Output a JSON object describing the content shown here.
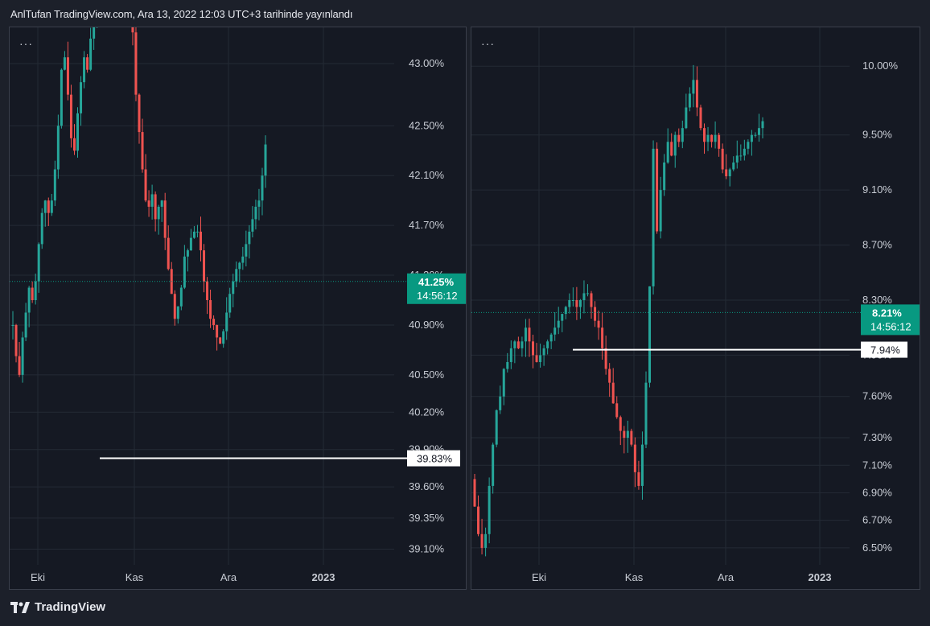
{
  "header": {
    "title": "AnlTufan TradingView.com, Ara 13, 2022 12:03 UTC+3 tarihinde yayınlandı"
  },
  "footer": {
    "brand": "TradingView"
  },
  "menu_dots": "···",
  "colors": {
    "up": "#26a69a",
    "down": "#ef5350",
    "grid": "#242a35",
    "text": "#c8ccd4",
    "badge": "#089981"
  },
  "chart_data": [
    {
      "type": "candlestick",
      "x_ticks": [
        "Eki",
        "Kas",
        "Ara",
        "2023"
      ],
      "y_ticks": [
        "43.00%",
        "42.50%",
        "42.10%",
        "41.70%",
        "41.30%",
        "40.90%",
        "40.50%",
        "40.20%",
        "39.90%",
        "39.60%",
        "39.35%",
        "39.10%"
      ],
      "ylim": [
        39.0,
        43.2
      ],
      "last_price": "41.25%",
      "countdown": "14:56:12",
      "horizontal_line": {
        "value": 39.83,
        "label": "39.83%"
      },
      "start": 40.9,
      "walk": [
        0.0,
        -0.25,
        -0.15,
        0.3,
        0.2,
        0.2,
        -0.1,
        0.15,
        0.3,
        0.25,
        0.1,
        -0.1,
        0.1,
        0.25,
        0.35,
        0.45,
        0.1,
        -0.3,
        -0.35,
        -0.1,
        0.3,
        0.25,
        0.2,
        -0.1,
        0.25,
        0.2,
        0.1,
        0.2,
        -0.1,
        0.15,
        0.15,
        0.05,
        0.1,
        -0.05,
        -0.1,
        -0.15,
        -0.2,
        -0.3,
        -0.5,
        -0.3,
        -0.3,
        -0.25,
        -0.05,
        0.1,
        -0.2,
        0.1,
        0.05,
        -0.3,
        -0.25,
        -0.2,
        -0.2,
        0.1,
        0.15,
        0.25,
        0.05,
        0.1,
        0.05,
        0.0,
        -0.15,
        -0.25,
        -0.15,
        -0.15,
        -0.05,
        -0.1,
        -0.05,
        0.1,
        0.15,
        0.15,
        0.1,
        0.1,
        0.05,
        0.05,
        0.1,
        0.1,
        0.1,
        0.1,
        0.05,
        0.2,
        0.25
      ]
    },
    {
      "type": "candlestick",
      "x_ticks": [
        "Eki",
        "Kas",
        "Ara",
        "2023"
      ],
      "y_ticks": [
        "10.00%",
        "9.50%",
        "9.10%",
        "8.70%",
        "8.30%",
        "7.90%",
        "7.60%",
        "7.30%",
        "7.10%",
        "6.90%",
        "6.70%",
        "6.50%"
      ],
      "ylim": [
        6.4,
        10.2
      ],
      "last_price": "8.21%",
      "countdown": "14:56:12",
      "horizontal_line": {
        "value": 7.94,
        "label": "7.94%"
      },
      "start": 7.0,
      "walk": [
        -0.2,
        -0.2,
        -0.1,
        0.1,
        0.35,
        0.3,
        0.25,
        0.1,
        0.2,
        0.05,
        0.1,
        0.05,
        -0.05,
        0.05,
        0.1,
        -0.1,
        -0.1,
        -0.05,
        0.05,
        0.05,
        0.05,
        0.05,
        0.05,
        0.05,
        0.05,
        0.05,
        0.05,
        0.0,
        -0.05,
        0.05,
        0.05,
        0.0,
        -0.1,
        -0.1,
        -0.05,
        -0.15,
        -0.15,
        -0.1,
        -0.15,
        -0.1,
        -0.1,
        -0.05,
        0.05,
        -0.1,
        -0.2,
        -0.1,
        0.3,
        0.45,
        0.7,
        1.0,
        -0.6,
        0.3,
        0.2,
        0.15,
        -0.1,
        0.15,
        -0.05,
        0.1,
        0.15,
        0.1,
        0.1,
        -0.2,
        -0.15,
        -0.1,
        0.05,
        -0.05,
        0.05,
        -0.1,
        -0.15,
        -0.05,
        0.05,
        0.05,
        0.05,
        0.0,
        0.05,
        0.05,
        0.05,
        0.0,
        0.05,
        0.05
      ]
    }
  ]
}
